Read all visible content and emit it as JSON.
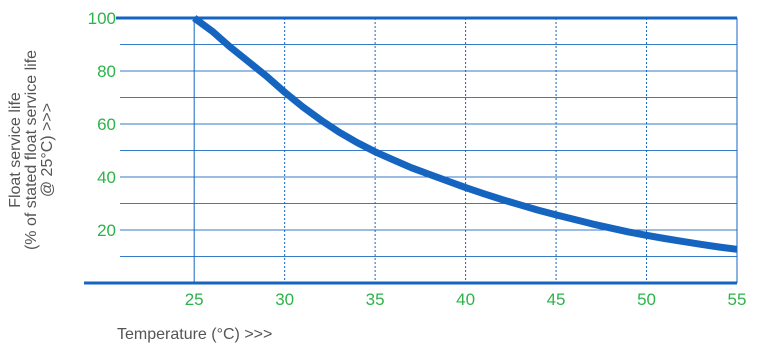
{
  "chart_data": {
    "type": "line",
    "title": "",
    "xlabel": "Temperature (°C)  >>>",
    "ylabel_lines": [
      "Float service life",
      "(% of stated float service life",
      "@ 25°C) >>>"
    ],
    "x_ticks": [
      25,
      30,
      35,
      40,
      45,
      50,
      55
    ],
    "y_ticks": [
      20,
      40,
      60,
      80,
      100
    ],
    "xlim": [
      20.9,
      55
    ],
    "ylim": [
      0,
      100
    ],
    "grid": true,
    "colors": {
      "line": "#1565c0",
      "grid": "#1565c0",
      "tick_label": "#2db34a"
    },
    "series": [
      {
        "values": [
          {
            "x": 25,
            "y": 100
          },
          {
            "x": 26,
            "y": 95
          },
          {
            "x": 27,
            "y": 89
          },
          {
            "x": 28,
            "y": 83.5
          },
          {
            "x": 29,
            "y": 78
          },
          {
            "x": 30,
            "y": 72
          },
          {
            "x": 31,
            "y": 66.5
          },
          {
            "x": 32,
            "y": 61.5
          },
          {
            "x": 33,
            "y": 57
          },
          {
            "x": 34,
            "y": 53
          },
          {
            "x": 35,
            "y": 49.5
          },
          {
            "x": 36,
            "y": 46.5
          },
          {
            "x": 37,
            "y": 43.5
          },
          {
            "x": 38,
            "y": 41
          },
          {
            "x": 39,
            "y": 38.5
          },
          {
            "x": 40,
            "y": 36
          },
          {
            "x": 41,
            "y": 33.7
          },
          {
            "x": 42,
            "y": 31.5
          },
          {
            "x": 43,
            "y": 29.5
          },
          {
            "x": 44,
            "y": 27.5
          },
          {
            "x": 45,
            "y": 25.7
          },
          {
            "x": 46,
            "y": 24
          },
          {
            "x": 47,
            "y": 22.3
          },
          {
            "x": 48,
            "y": 20.8
          },
          {
            "x": 49,
            "y": 19.3
          },
          {
            "x": 50,
            "y": 18
          },
          {
            "x": 51,
            "y": 16.8
          },
          {
            "x": 52,
            "y": 15.7
          },
          {
            "x": 53,
            "y": 14.6
          },
          {
            "x": 54,
            "y": 13.6
          },
          {
            "x": 55,
            "y": 12.7
          }
        ]
      }
    ]
  }
}
